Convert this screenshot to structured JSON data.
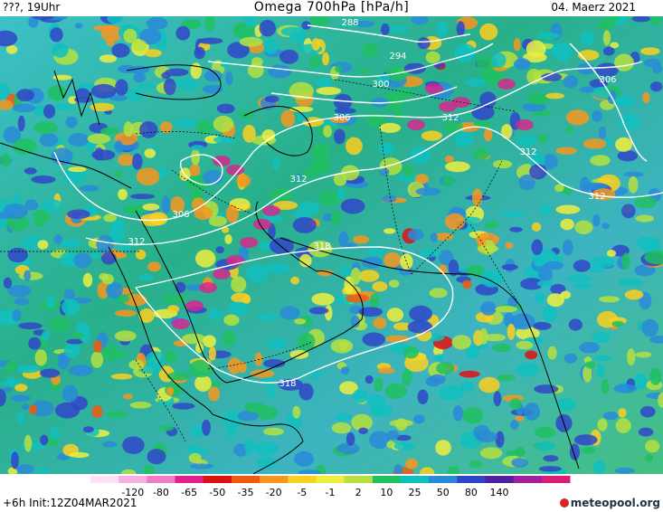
{
  "header": {
    "left": "???, 19Uhr",
    "title": "Omega 700hPa [hPa/h]",
    "date": "04. Maerz 2021"
  },
  "footer": {
    "init": "+6h  Init:12Z04MAR2021",
    "logo": "meteopool.org"
  },
  "colorbar": {
    "labels": [
      "-120",
      "-80",
      "-65",
      "-50",
      "-35",
      "-20",
      "-5",
      "-1",
      "2",
      "10",
      "25",
      "50",
      "80",
      "140"
    ],
    "colors": [
      "#ffe0f5",
      "#f8b0e0",
      "#f07cc8",
      "#e0208c",
      "#e01010",
      "#f05a10",
      "#f7961e",
      "#fbd020",
      "#eeee40",
      "#b6e040",
      "#20c060",
      "#10c0c0",
      "#2a8ad8",
      "#3046c8",
      "#5020a0",
      "#a020a0",
      "#d81e78"
    ]
  },
  "contour_labels": [
    "288",
    "294",
    "300",
    "306",
    "306",
    "306",
    "312",
    "312",
    "312",
    "312",
    "312",
    "318",
    "318"
  ],
  "colors": {
    "background_field": "#4cc7c0",
    "contours": "#ffffff",
    "coast": "#000000"
  }
}
